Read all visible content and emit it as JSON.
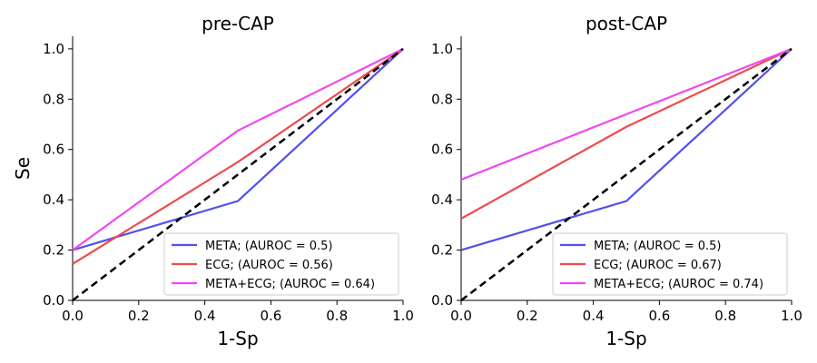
{
  "chart_data": [
    {
      "type": "line",
      "title": "pre-CAP",
      "xlabel": "1-Sp",
      "ylabel": "Se",
      "xlim": [
        0,
        1
      ],
      "ylim": [
        0,
        1.05
      ],
      "xticks": [
        "0.0",
        "0.2",
        "0.4",
        "0.6",
        "0.8",
        "1.0"
      ],
      "yticks": [
        "0.0",
        "0.2",
        "0.4",
        "0.6",
        "0.8",
        "1.0"
      ],
      "legend_position": "lower-right",
      "series": [
        {
          "name": "META; (AUROC = 0.5)",
          "color": "#5050ee",
          "x": [
            0,
            0.5,
            1
          ],
          "y": [
            0.2,
            0.395,
            1.0
          ]
        },
        {
          "name": "ECG; (AUROC = 0.56)",
          "color": "#ee4a4a",
          "x": [
            0,
            0.5,
            1
          ],
          "y": [
            0.145,
            0.55,
            1.0
          ]
        },
        {
          "name": "META+ECG; (AUROC = 0.64)",
          "color": "#f048f0",
          "x": [
            0,
            0.5,
            1
          ],
          "y": [
            0.2,
            0.675,
            1.0
          ]
        }
      ],
      "reference": {
        "x": [
          0,
          1
        ],
        "y": [
          0,
          1
        ],
        "color": "#000000"
      }
    },
    {
      "type": "line",
      "title": "post-CAP",
      "xlabel": "1-Sp",
      "ylabel": "",
      "xlim": [
        0,
        1
      ],
      "ylim": [
        0,
        1.05
      ],
      "xticks": [
        "0.0",
        "0.2",
        "0.4",
        "0.6",
        "0.8",
        "1.0"
      ],
      "yticks": [
        "0.0",
        "0.2",
        "0.4",
        "0.6",
        "0.8",
        "1.0"
      ],
      "legend_position": "lower-right",
      "series": [
        {
          "name": "META; (AUROC = 0.5)",
          "color": "#5050ee",
          "x": [
            0,
            0.5,
            1
          ],
          "y": [
            0.2,
            0.395,
            1.0
          ]
        },
        {
          "name": "ECG; (AUROC = 0.67)",
          "color": "#ee4a4a",
          "x": [
            0,
            0.5,
            1
          ],
          "y": [
            0.325,
            0.69,
            1.0
          ]
        },
        {
          "name": "META+ECG; (AUROC = 0.74)",
          "color": "#f048f0",
          "x": [
            0,
            0.5,
            1
          ],
          "y": [
            0.48,
            0.74,
            1.0
          ]
        }
      ],
      "reference": {
        "x": [
          0,
          1
        ],
        "y": [
          0,
          1
        ],
        "color": "#000000"
      }
    }
  ]
}
